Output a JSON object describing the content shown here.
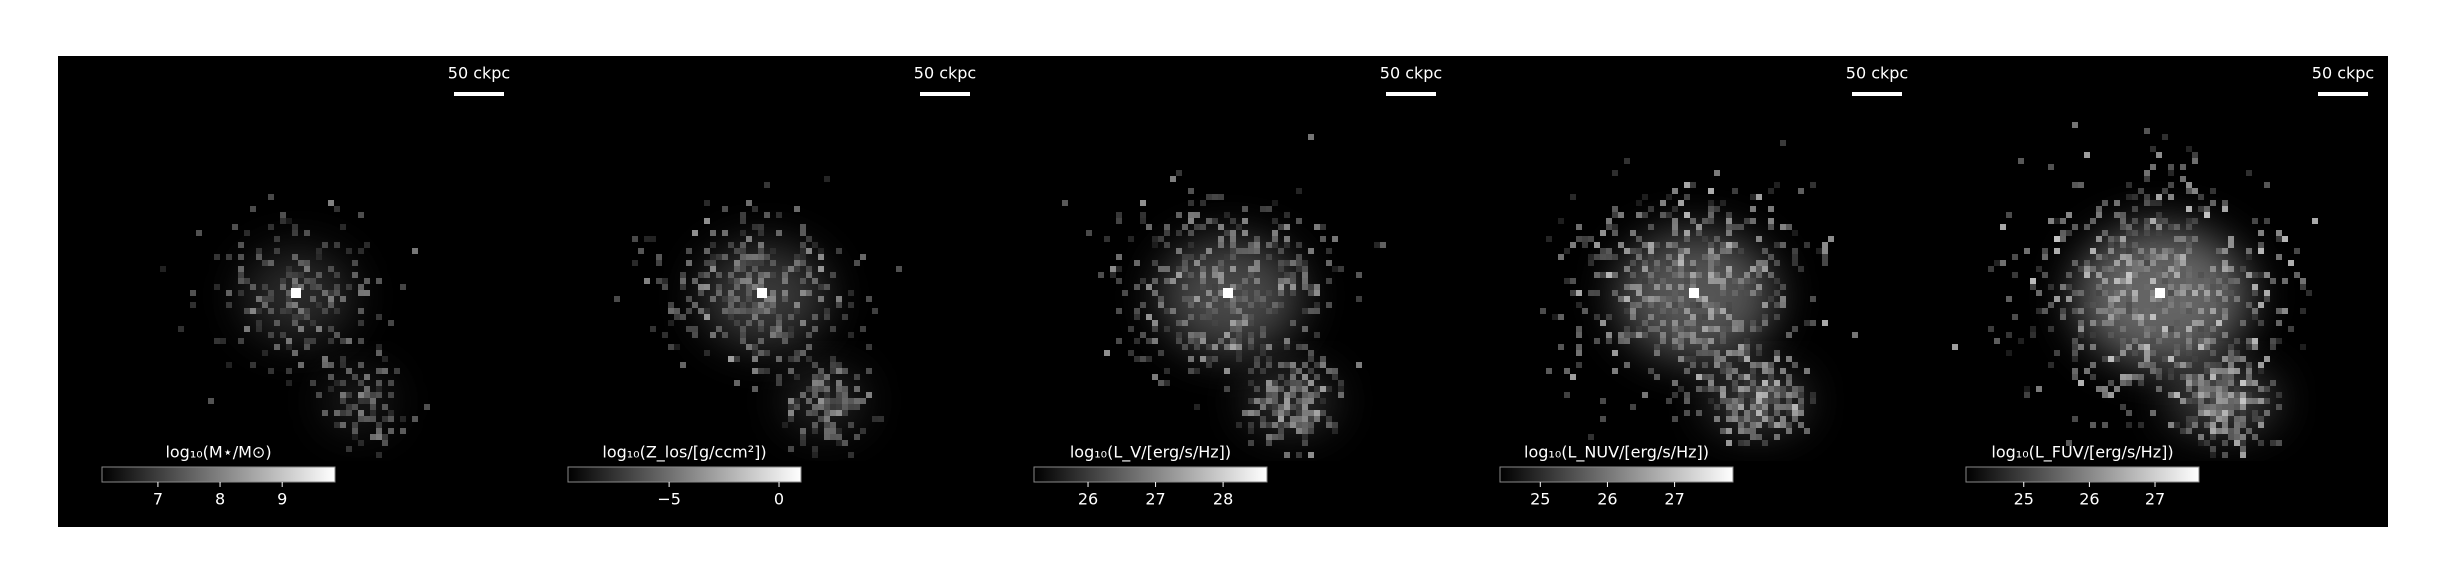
{
  "panels": [
    {
      "scale_label": "50 ckpc",
      "colorbar_label": "log₁₀(M⋆/M⊙)",
      "clim": [
        6.1,
        9.85
      ],
      "colorbar_ticks": [
        7,
        8,
        9
      ]
    },
    {
      "scale_label": "50 ckpc",
      "colorbar_label": "log₁₀(Z_los/[g/ccm²])",
      "clim": [
        -9.6,
        1.0
      ],
      "colorbar_ticks": [
        {
          "value": -5,
          "label": "−5"
        },
        0
      ]
    },
    {
      "scale_label": "50 ckpc",
      "colorbar_label": "log₁₀(L_V/[erg/s/Hz])",
      "clim": [
        25.2,
        28.65
      ],
      "colorbar_ticks": [
        26,
        27,
        28
      ]
    },
    {
      "scale_label": "50 ckpc",
      "colorbar_label": "log₁₀(L_NUV/[erg/s/Hz])",
      "clim": [
        24.4,
        27.87
      ],
      "colorbar_ticks": [
        25,
        26,
        27
      ]
    },
    {
      "scale_label": "50 ckpc",
      "colorbar_label": "log₁₀(L_FUV/[erg/s/Hz])",
      "clim": [
        24.12,
        27.67
      ],
      "colorbar_ticks": [
        25,
        26,
        27
      ]
    }
  ]
}
